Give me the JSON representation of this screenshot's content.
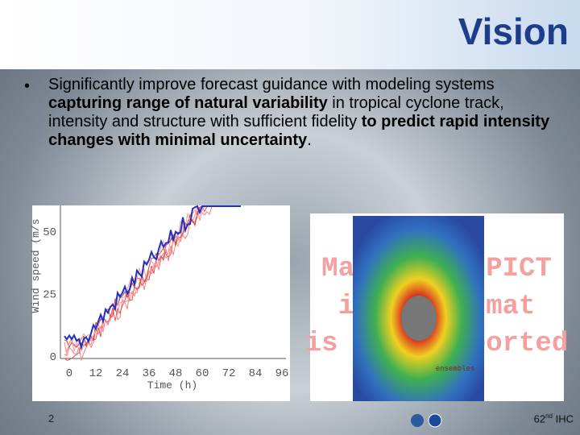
{
  "title": "Vision",
  "bullet": {
    "segments": [
      {
        "text": "Significantly improve forecast guidance with modeling systems ",
        "bold": false
      },
      {
        "text": "capturing range of natural variability",
        "bold": true
      },
      {
        "text": " in tropical cyclone track, intensity and structure with sufficient fidelity ",
        "bold": false
      },
      {
        "text": "to predict rapid intensity changes with minimal uncertainty",
        "bold": true
      },
      {
        "text": ".",
        "bold": false
      }
    ]
  },
  "left_figure": {
    "y_axis_label": "Wind speed (m/s",
    "y_ticks": [
      "0",
      "25",
      "50"
    ],
    "x_axis_label": "Time (h)",
    "x_ticks": [
      "0",
      "12",
      "24",
      "36",
      "48",
      "60",
      "72",
      "84",
      "96"
    ]
  },
  "right_figure": {
    "placeholder_lines": [
      "Macintosh PICT",
      "image format",
      "is not supported"
    ],
    "caption": "ensembles"
  },
  "footer": {
    "page": "2",
    "event_number": "62",
    "event_suffix": "nd",
    "event_name": " IHC"
  }
}
